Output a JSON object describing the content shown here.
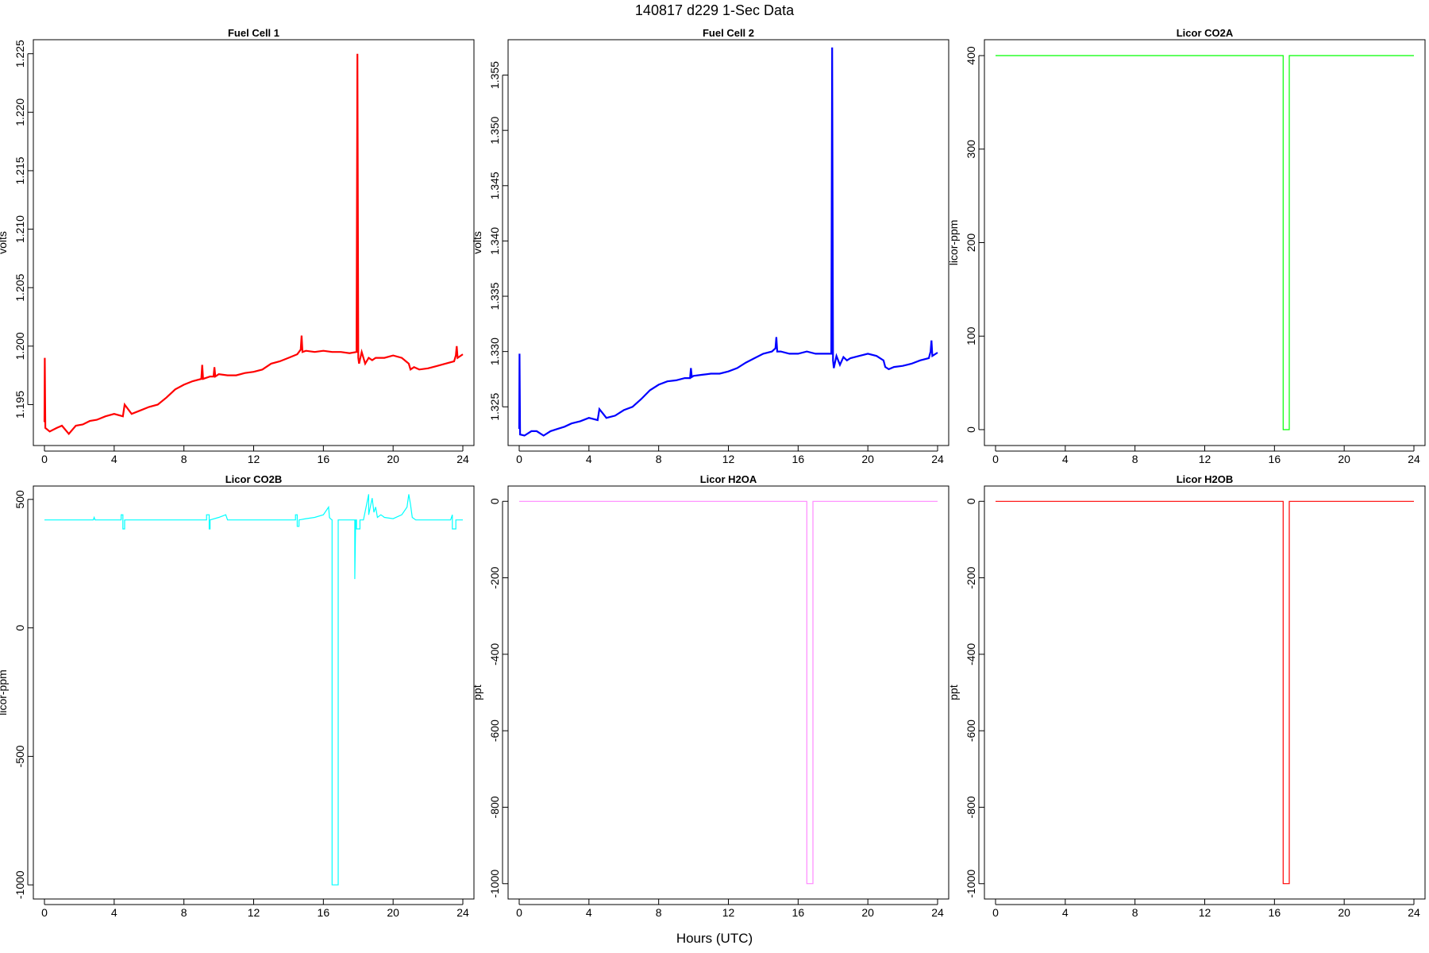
{
  "figure": {
    "title": "140817   d229   1-Sec Data",
    "xlabel": "Hours (UTC)"
  },
  "chart_data": [
    {
      "type": "line",
      "title": "Fuel Cell 1",
      "ylabel": "volts",
      "color": "#ff0000",
      "xlim": [
        0,
        24
      ],
      "ylim": [
        1.1915,
        1.2262
      ],
      "xticks": [
        0,
        4,
        8,
        12,
        16,
        20,
        24
      ],
      "xtick_labels": [
        "0",
        "4",
        "8",
        "12",
        "16",
        "20",
        "24"
      ],
      "yticks": [
        1.195,
        1.2,
        1.205,
        1.21,
        1.215,
        1.22,
        1.225
      ],
      "ytick_labels": [
        "1.195",
        "1.200",
        "1.205",
        "1.210",
        "1.215",
        "1.220",
        "1.225"
      ],
      "x": [
        0,
        0.02,
        0.05,
        0.3,
        0.7,
        1.0,
        1.4,
        1.8,
        2.2,
        2.6,
        3.0,
        3.5,
        4.0,
        4.5,
        4.6,
        5.0,
        5.5,
        6.0,
        6.5,
        7.0,
        7.5,
        8.0,
        8.5,
        9.0,
        9.05,
        9.1,
        9.5,
        9.7,
        9.75,
        9.8,
        10.0,
        10.5,
        11.0,
        11.5,
        12.0,
        12.5,
        13.0,
        13.5,
        14.0,
        14.5,
        14.7,
        14.75,
        14.8,
        15.0,
        15.5,
        16.0,
        16.5,
        17.0,
        17.5,
        17.9,
        17.95,
        18.0,
        18.05,
        18.2,
        18.4,
        18.6,
        18.8,
        19.0,
        19.5,
        20.0,
        20.5,
        20.9,
        21.0,
        21.2,
        21.5,
        22.0,
        22.5,
        23.0,
        23.5,
        23.6,
        23.65,
        23.7,
        24.0
      ],
      "y": [
        1.1935,
        1.199,
        1.193,
        1.1927,
        1.193,
        1.1932,
        1.1925,
        1.1932,
        1.1933,
        1.1936,
        1.1937,
        1.194,
        1.1942,
        1.194,
        1.195,
        1.1942,
        1.1945,
        1.1948,
        1.195,
        1.1956,
        1.1963,
        1.1967,
        1.197,
        1.1972,
        1.1984,
        1.1972,
        1.1974,
        1.1974,
        1.1982,
        1.1974,
        1.1976,
        1.1975,
        1.1975,
        1.1977,
        1.1978,
        1.198,
        1.1985,
        1.1987,
        1.199,
        1.1993,
        1.1997,
        1.2009,
        1.1995,
        1.1996,
        1.1995,
        1.1996,
        1.1995,
        1.1995,
        1.1994,
        1.1995,
        1.225,
        1.199,
        1.1985,
        1.1995,
        1.1985,
        1.199,
        1.1988,
        1.199,
        1.199,
        1.1992,
        1.199,
        1.1985,
        1.198,
        1.1982,
        1.198,
        1.1981,
        1.1983,
        1.1985,
        1.1987,
        1.1992,
        1.2,
        1.199,
        1.1993
      ]
    },
    {
      "type": "line",
      "title": "Fuel Cell 2",
      "ylabel": "volts",
      "color": "#0000ff",
      "xlim": [
        0,
        24
      ],
      "ylim": [
        1.3215,
        1.3582
      ],
      "xticks": [
        0,
        4,
        8,
        12,
        16,
        20,
        24
      ],
      "xtick_labels": [
        "0",
        "4",
        "8",
        "12",
        "16",
        "20",
        "24"
      ],
      "yticks": [
        1.325,
        1.33,
        1.335,
        1.34,
        1.345,
        1.35,
        1.355
      ],
      "ytick_labels": [
        "1.325",
        "1.330",
        "1.335",
        "1.340",
        "1.345",
        "1.350",
        "1.355"
      ],
      "x": [
        0,
        0.02,
        0.05,
        0.3,
        0.7,
        1.0,
        1.4,
        1.8,
        2.2,
        2.6,
        3.0,
        3.5,
        4.0,
        4.5,
        4.6,
        5.0,
        5.5,
        6.0,
        6.5,
        7.0,
        7.5,
        8.0,
        8.5,
        9.0,
        9.5,
        9.8,
        9.85,
        9.9,
        10.0,
        10.5,
        11.0,
        11.5,
        12.0,
        12.5,
        13.0,
        13.5,
        14.0,
        14.5,
        14.7,
        14.75,
        14.8,
        15.0,
        15.5,
        16.0,
        16.5,
        17.0,
        17.5,
        17.9,
        17.95,
        18.0,
        18.05,
        18.2,
        18.4,
        18.6,
        18.8,
        19.0,
        19.5,
        20.0,
        20.5,
        20.9,
        21.0,
        21.2,
        21.5,
        22.0,
        22.5,
        23.0,
        23.5,
        23.6,
        23.65,
        23.7,
        24.0
      ],
      "y": [
        1.323,
        1.3298,
        1.3225,
        1.3224,
        1.3228,
        1.3228,
        1.3224,
        1.3228,
        1.323,
        1.3232,
        1.3235,
        1.3237,
        1.324,
        1.3238,
        1.3248,
        1.324,
        1.3242,
        1.3247,
        1.325,
        1.3257,
        1.3265,
        1.327,
        1.3273,
        1.3274,
        1.3276,
        1.3276,
        1.3285,
        1.3277,
        1.3278,
        1.3279,
        1.328,
        1.328,
        1.3282,
        1.3285,
        1.329,
        1.3294,
        1.3298,
        1.33,
        1.3303,
        1.3313,
        1.33,
        1.33,
        1.3298,
        1.3298,
        1.33,
        1.3298,
        1.3298,
        1.3298,
        1.3575,
        1.3292,
        1.3285,
        1.3296,
        1.3288,
        1.3295,
        1.3292,
        1.3294,
        1.3296,
        1.3298,
        1.3296,
        1.3292,
        1.3286,
        1.3284,
        1.3286,
        1.3287,
        1.3289,
        1.3292,
        1.3294,
        1.33,
        1.331,
        1.3296,
        1.3299
      ]
    },
    {
      "type": "line",
      "title": "Licor CO2A",
      "ylabel": "licor-ppm",
      "color": "#00ff00",
      "xlim": [
        0,
        24
      ],
      "ylim": [
        -17,
        417
      ],
      "xticks": [
        0,
        4,
        8,
        12,
        16,
        20,
        24
      ],
      "xtick_labels": [
        "0",
        "4",
        "8",
        "12",
        "16",
        "20",
        "24"
      ],
      "yticks": [
        0,
        100,
        200,
        300,
        400
      ],
      "ytick_labels": [
        "0",
        "100",
        "200",
        "300",
        "400"
      ],
      "x": [
        0,
        16.5,
        16.5,
        16.85,
        16.85,
        24
      ],
      "y": [
        400,
        400,
        0,
        0,
        400,
        400
      ]
    },
    {
      "type": "line",
      "title": "Licor CO2B",
      "ylabel": "licor-ppm",
      "color": "#00ffff",
      "xlim": [
        0,
        24
      ],
      "ylim": [
        -1055,
        552
      ],
      "xticks": [
        0,
        4,
        8,
        12,
        16,
        20,
        24
      ],
      "xtick_labels": [
        "0",
        "4",
        "8",
        "12",
        "16",
        "20",
        "24"
      ],
      "yticks": [
        -1000,
        -500,
        0,
        500
      ],
      "ytick_labels": [
        "-1000",
        "-500",
        "0",
        "500"
      ],
      "x": [
        0,
        2.8,
        2.85,
        2.9,
        4.4,
        4.4,
        4.5,
        4.5,
        4.6,
        4.6,
        9.3,
        9.3,
        9.45,
        9.45,
        9.5,
        9.5,
        10.0,
        10.4,
        10.5,
        14.4,
        14.4,
        14.5,
        14.5,
        14.6,
        14.6,
        15.0,
        15.5,
        16.0,
        16.3,
        16.35,
        16.4,
        16.5,
        16.5,
        16.85,
        16.85,
        17.5,
        17.8,
        17.8,
        17.85,
        17.9,
        17.9,
        18.1,
        18.1,
        18.3,
        18.3,
        18.6,
        18.6,
        18.8,
        18.9,
        19.0,
        19.1,
        19.3,
        19.5,
        20.0,
        20.5,
        20.8,
        20.9,
        21.0,
        21.1,
        21.3,
        23.3,
        23.4,
        23.4,
        23.6,
        23.6,
        24.0
      ],
      "y": [
        420,
        420,
        430,
        420,
        420,
        440,
        440,
        385,
        385,
        420,
        420,
        440,
        440,
        385,
        385,
        420,
        430,
        440,
        420,
        420,
        440,
        440,
        395,
        395,
        420,
        425,
        430,
        440,
        470,
        430,
        425,
        420,
        -1000,
        -1000,
        420,
        420,
        420,
        190,
        420,
        420,
        385,
        385,
        420,
        420,
        420,
        520,
        440,
        505,
        450,
        470,
        430,
        440,
        430,
        425,
        440,
        470,
        520,
        480,
        430,
        420,
        420,
        440,
        385,
        385,
        420,
        420
      ]
    },
    {
      "type": "line",
      "title": "Licor H2OA",
      "ylabel": "ppt",
      "color": "#ff88ff",
      "xlim": [
        0,
        24
      ],
      "ylim": [
        -1040,
        40
      ],
      "xticks": [
        0,
        4,
        8,
        12,
        16,
        20,
        24
      ],
      "xtick_labels": [
        "0",
        "4",
        "8",
        "12",
        "16",
        "20",
        "24"
      ],
      "yticks": [
        -1000,
        -800,
        -600,
        -400,
        -200,
        0
      ],
      "ytick_labels": [
        "-1000",
        "-800",
        "-600",
        "-400",
        "-200",
        "0"
      ],
      "x": [
        0,
        16.5,
        16.5,
        16.85,
        16.85,
        24
      ],
      "y": [
        0,
        0,
        -1000,
        -1000,
        0,
        0
      ]
    },
    {
      "type": "line",
      "title": "Licor H2OB",
      "ylabel": "ppt",
      "color": "#ff0000",
      "xlim": [
        0,
        24
      ],
      "ylim": [
        -1040,
        40
      ],
      "xticks": [
        0,
        4,
        8,
        12,
        16,
        20,
        24
      ],
      "xtick_labels": [
        "0",
        "4",
        "8",
        "12",
        "16",
        "20",
        "24"
      ],
      "yticks": [
        -1000,
        -800,
        -600,
        -400,
        -200,
        0
      ],
      "ytick_labels": [
        "-1000",
        "-800",
        "-600",
        "-400",
        "-200",
        "0"
      ],
      "x": [
        0,
        16.5,
        16.5,
        16.85,
        16.85,
        24
      ],
      "y": [
        0,
        0,
        -1000,
        -1000,
        0,
        0
      ]
    }
  ]
}
